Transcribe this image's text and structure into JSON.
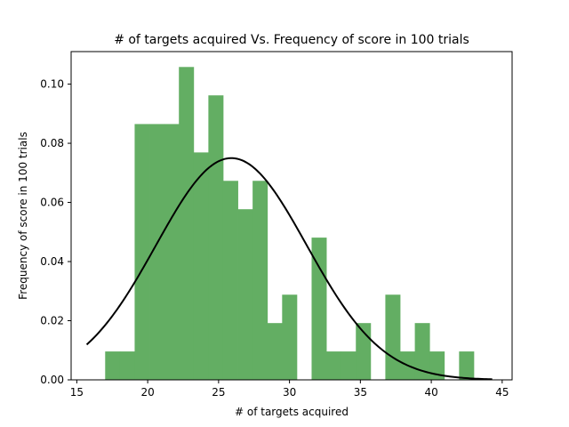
{
  "chart_data": {
    "type": "bar",
    "title": "# of targets acquired Vs. Frequency of score in 100 trials",
    "xlabel": "# of targets acquired",
    "ylabel": "Frequency of score in 100 trials",
    "xlim": [
      14.6,
      45.7
    ],
    "ylim": [
      0,
      0.111
    ],
    "x_ticks": [
      15,
      20,
      25,
      30,
      35,
      40,
      45
    ],
    "y_ticks": [
      0.0,
      0.02,
      0.04,
      0.06,
      0.08,
      0.1
    ],
    "x_tick_labels": [
      "15",
      "20",
      "25",
      "30",
      "35",
      "40",
      "45"
    ],
    "y_tick_labels": [
      "0.00",
      "0.02",
      "0.04",
      "0.06",
      "0.08",
      "0.10"
    ],
    "grid": false,
    "histogram": {
      "name": "",
      "color": "#63ae63",
      "bin_edges": [
        17.0,
        18.04,
        19.08,
        20.12,
        21.16,
        22.2,
        23.24,
        24.28,
        25.32,
        26.36,
        27.4,
        28.44,
        29.48,
        30.52,
        31.56,
        32.6,
        33.64,
        34.68,
        35.72,
        36.76,
        37.8,
        38.84,
        39.88,
        40.92,
        41.96,
        43.0
      ],
      "values": [
        0.0096,
        0.0096,
        0.0865,
        0.0865,
        0.0865,
        0.1058,
        0.0769,
        0.0962,
        0.0673,
        0.0577,
        0.0673,
        0.0192,
        0.0288,
        0.0,
        0.0481,
        0.0096,
        0.0096,
        0.0192,
        0.0,
        0.0288,
        0.0096,
        0.0192,
        0.0096,
        0.0,
        0.0096
      ]
    },
    "fit_curve": {
      "name": "",
      "color": "#000000",
      "distribution": "normal",
      "mean": 25.9,
      "std": 5.32,
      "x_range": [
        15.7,
        44.3
      ]
    }
  }
}
